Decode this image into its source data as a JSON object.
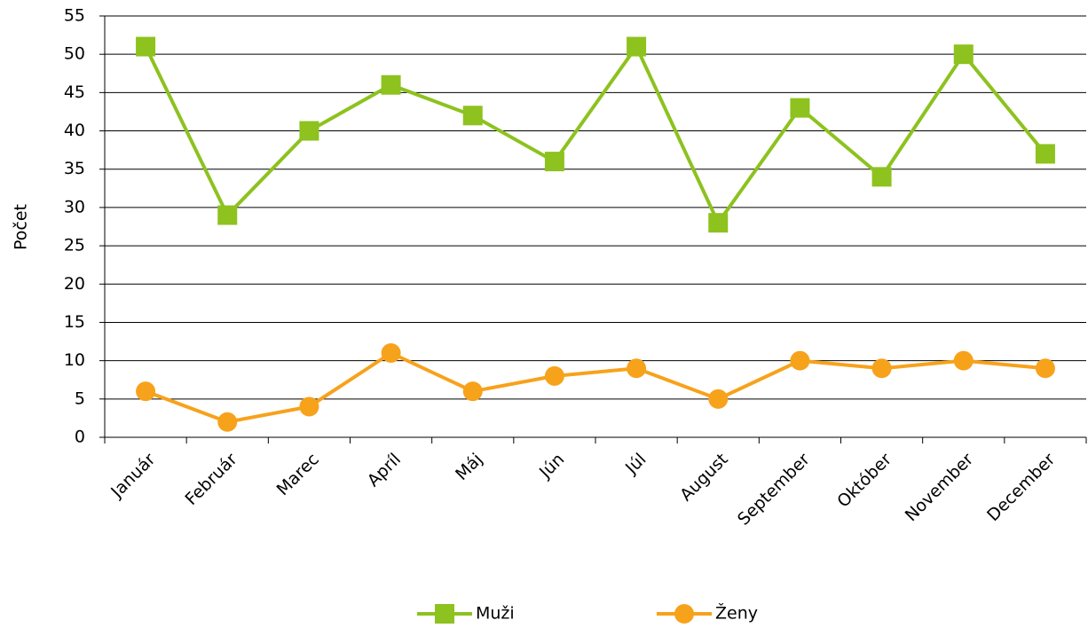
{
  "chart_data": {
    "type": "line",
    "y_label": "Počet",
    "categories": [
      "Január",
      "Február",
      "Marec",
      "Apríl",
      "Máj",
      "Jún",
      "Júl",
      "August",
      "September",
      "Október",
      "November",
      "December"
    ],
    "series": [
      {
        "name": "Muži",
        "color": "#8dc21f",
        "marker": "square",
        "values": [
          51,
          29,
          40,
          46,
          42,
          36,
          51,
          28,
          43,
          34,
          50,
          37
        ]
      },
      {
        "name": "Ženy",
        "color": "#f7a21b",
        "marker": "circle",
        "values": [
          6,
          2,
          4,
          11,
          6,
          8,
          9,
          5,
          10,
          9,
          10,
          9
        ]
      }
    ],
    "ylim": [
      0,
      55
    ],
    "yticks": [
      0,
      5,
      10,
      15,
      20,
      25,
      30,
      35,
      40,
      45,
      50,
      55
    ],
    "grid": true,
    "legend": "bottom"
  }
}
